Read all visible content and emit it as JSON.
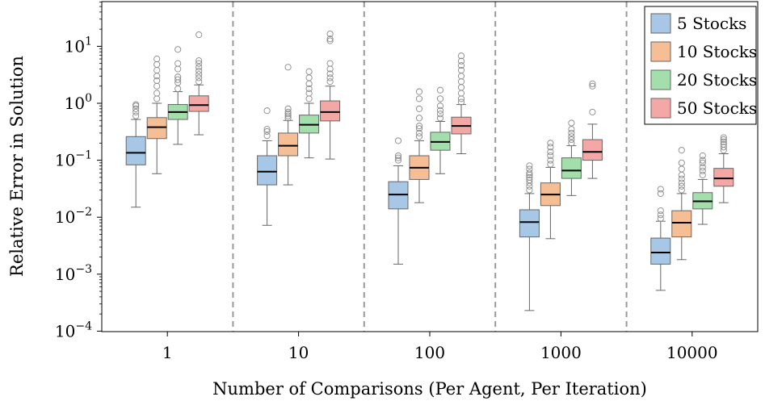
{
  "chart_data": {
    "type": "box",
    "title": "",
    "xlabel": "Number of Comparisons (Per Agent, Per Iteration)",
    "ylabel": "Relative Error in Solution",
    "yscale": "log",
    "ylim": [
      0.0001,
      50
    ],
    "yticks": [
      {
        "value": 10,
        "base": "10",
        "exp": "1"
      },
      {
        "value": 1,
        "base": "10",
        "exp": "0"
      },
      {
        "value": 0.1,
        "base": "10",
        "exp": "−1"
      },
      {
        "value": 0.01,
        "base": "10",
        "exp": "−2"
      },
      {
        "value": 0.001,
        "base": "10",
        "exp": "−3"
      },
      {
        "value": 0.0001,
        "base": "10",
        "exp": "−4"
      }
    ],
    "categories": [
      "1",
      "10",
      "100",
      "1000",
      "10000"
    ],
    "legend_position": "top-right",
    "grid": false,
    "category_separators": "dashed",
    "series": [
      {
        "name": "5 Stocks",
        "color": "#a7c7e7",
        "boxes": [
          {
            "whislo": 0.015,
            "q1": 0.083,
            "med": 0.135,
            "q3": 0.26,
            "whishi": 0.52,
            "fliers": [
              0.6,
              0.7,
              0.8,
              0.9,
              0.95
            ]
          },
          {
            "whislo": 0.0072,
            "q1": 0.037,
            "med": 0.063,
            "q3": 0.12,
            "whishi": 0.22,
            "fliers": [
              0.27,
              0.32,
              0.35,
              0.74
            ]
          },
          {
            "whislo": 0.0015,
            "q1": 0.014,
            "med": 0.025,
            "q3": 0.042,
            "whishi": 0.08,
            "fliers": [
              0.1,
              0.11,
              0.12,
              0.22
            ]
          },
          {
            "whislo": 0.00023,
            "q1": 0.0045,
            "med": 0.0082,
            "q3": 0.0135,
            "whishi": 0.026,
            "fliers": [
              0.03,
              0.035,
              0.04,
              0.045,
              0.05,
              0.055,
              0.06,
              0.07,
              0.08
            ]
          },
          {
            "whislo": 0.00052,
            "q1": 0.0015,
            "med": 0.0024,
            "q3": 0.0043,
            "whishi": 0.0085,
            "fliers": [
              0.0095,
              0.011,
              0.013,
              0.026,
              0.031
            ]
          }
        ]
      },
      {
        "name": "10 Stocks",
        "color": "#f5be95",
        "boxes": [
          {
            "whislo": 0.058,
            "q1": 0.24,
            "med": 0.38,
            "q3": 0.56,
            "whishi": 1.0,
            "fliers": [
              1.2,
              1.5,
              2.0,
              2.5,
              3.0,
              3.8,
              4.8,
              6.0
            ]
          },
          {
            "whislo": 0.037,
            "q1": 0.12,
            "med": 0.18,
            "q3": 0.3,
            "whishi": 0.5,
            "fliers": [
              0.55,
              0.6,
              0.65,
              0.7,
              0.8,
              4.3
            ]
          },
          {
            "whislo": 0.018,
            "q1": 0.046,
            "med": 0.074,
            "q3": 0.12,
            "whishi": 0.22,
            "fliers": [
              0.26,
              0.3,
              0.36,
              0.4,
              0.55,
              0.8,
              1.2,
              1.6
            ]
          },
          {
            "whislo": 0.0042,
            "q1": 0.016,
            "med": 0.025,
            "q3": 0.04,
            "whishi": 0.075,
            "fliers": [
              0.085,
              0.1,
              0.12,
              0.14,
              0.17,
              0.2
            ]
          },
          {
            "whislo": 0.0018,
            "q1": 0.0045,
            "med": 0.008,
            "q3": 0.013,
            "whishi": 0.026,
            "fliers": [
              0.03,
              0.035,
              0.04,
              0.047,
              0.055,
              0.07,
              0.09,
              0.15
            ]
          }
        ]
      },
      {
        "name": "20 Stocks",
        "color": "#a2dfaa",
        "boxes": [
          {
            "whislo": 0.19,
            "q1": 0.52,
            "med": 0.7,
            "q3": 0.95,
            "whishi": 1.6,
            "fliers": [
              1.8,
              2.3,
              2.6,
              2.9,
              4.0,
              5.0,
              8.8
            ]
          },
          {
            "whislo": 0.11,
            "q1": 0.3,
            "med": 0.42,
            "q3": 0.62,
            "whishi": 1.0,
            "fliers": [
              1.2,
              1.5,
              1.8,
              2.2,
              2.8,
              3.6
            ]
          },
          {
            "whislo": 0.058,
            "q1": 0.15,
            "med": 0.21,
            "q3": 0.31,
            "whishi": 0.48,
            "fliers": [
              0.55,
              0.65,
              0.75,
              0.9,
              1.2,
              1.7
            ]
          },
          {
            "whislo": 0.024,
            "q1": 0.048,
            "med": 0.066,
            "q3": 0.11,
            "whishi": 0.18,
            "fliers": [
              0.2,
              0.23,
              0.26,
              0.3,
              0.35,
              0.45
            ]
          },
          {
            "whislo": 0.0075,
            "q1": 0.014,
            "med": 0.019,
            "q3": 0.027,
            "whishi": 0.046,
            "fliers": [
              0.055,
              0.065,
              0.075,
              0.09,
              0.1,
              0.12
            ]
          }
        ]
      },
      {
        "name": "50 Stocks",
        "color": "#f4a8a5",
        "boxes": [
          {
            "whislo": 0.28,
            "q1": 0.72,
            "med": 0.93,
            "q3": 1.35,
            "whishi": 2.1,
            "fliers": [
              2.4,
              2.8,
              3.2,
              3.7,
              4.3,
              5.0,
              5.6,
              16.0
            ]
          },
          {
            "whislo": 0.105,
            "q1": 0.49,
            "med": 0.7,
            "q3": 1.1,
            "whishi": 2.0,
            "fliers": [
              2.4,
              2.8,
              3.3,
              4.0,
              5.0,
              12.5,
              13.5,
              16.5
            ]
          },
          {
            "whislo": 0.13,
            "q1": 0.29,
            "med": 0.4,
            "q3": 0.57,
            "whishi": 0.95,
            "fliers": [
              1.05,
              1.2,
              1.5,
              1.9,
              2.4,
              3.0,
              3.8,
              4.6,
              5.5,
              6.8
            ]
          },
          {
            "whislo": 0.048,
            "q1": 0.1,
            "med": 0.14,
            "q3": 0.23,
            "whishi": 0.43,
            "fliers": [
              0.7,
              2.0,
              2.2
            ]
          },
          {
            "whislo": 0.018,
            "q1": 0.035,
            "med": 0.048,
            "q3": 0.072,
            "whishi": 0.13,
            "fliers": [
              0.15,
              0.17,
              0.19,
              0.21,
              0.23,
              0.25
            ]
          }
        ]
      }
    ]
  }
}
